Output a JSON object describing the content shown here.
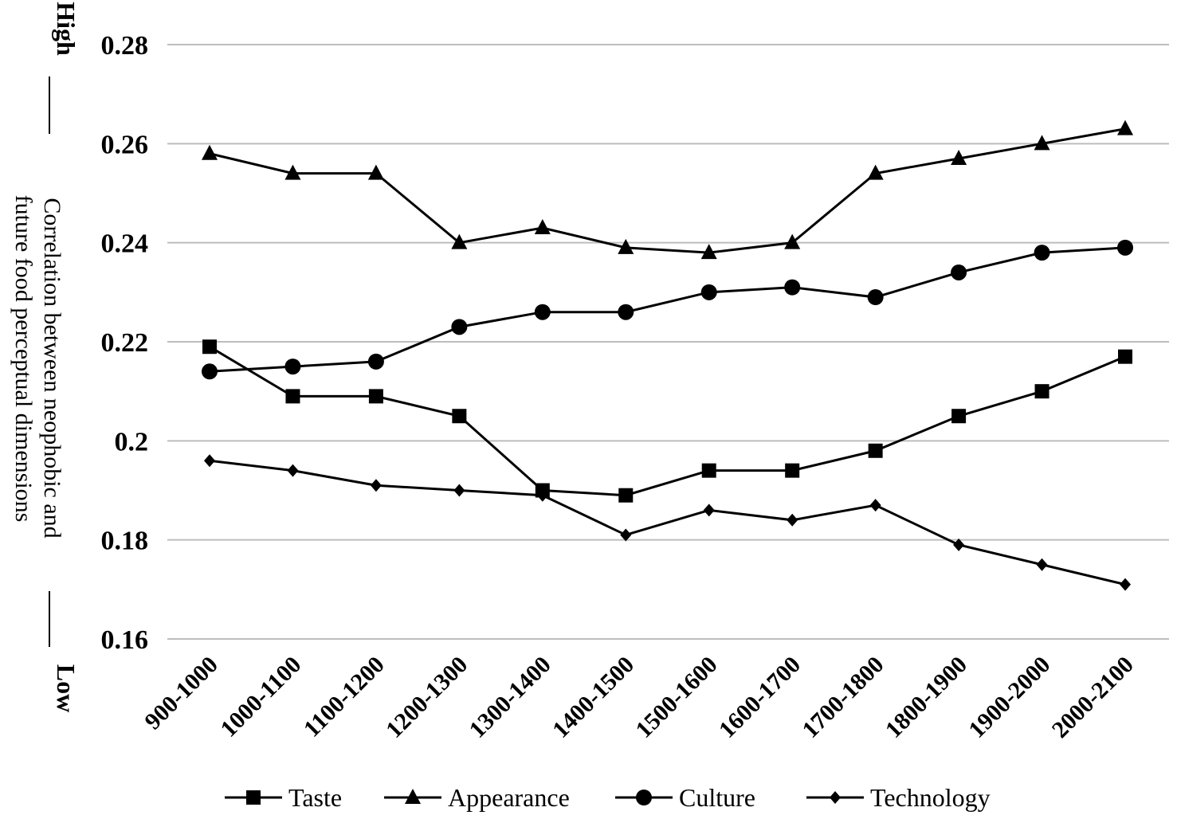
{
  "chart_data": {
    "type": "line",
    "title": "",
    "xlabel": "",
    "ylabel_lines": [
      "Correlation between neophobic and",
      "future food perceptual dimensions"
    ],
    "high_label": "High",
    "low_label": "Low",
    "ylim": [
      0.16,
      0.28
    ],
    "ytick_labels": [
      "0.16",
      "0.18",
      "0.2",
      "0.22",
      "0.24",
      "0.26",
      "0.28"
    ],
    "ytick_values": [
      0.16,
      0.18,
      0.2,
      0.22,
      0.24,
      0.26,
      0.28
    ],
    "grid": true,
    "legend_position": "bottom",
    "categories": [
      "900-1000",
      "1000-1100",
      "1100-1200",
      "1200-1300",
      "1300-1400",
      "1400-1500",
      "1500-1600",
      "1600-1700",
      "1700-1800",
      "1800-1900",
      "1900-2000",
      "2000-2100"
    ],
    "series": [
      {
        "name": "Taste",
        "marker": "square",
        "values": [
          0.219,
          0.209,
          0.209,
          0.205,
          0.19,
          0.189,
          0.194,
          0.194,
          0.198,
          0.205,
          0.21,
          0.217
        ]
      },
      {
        "name": "Appearance",
        "marker": "triangle",
        "values": [
          0.258,
          0.254,
          0.254,
          0.24,
          0.243,
          0.239,
          0.238,
          0.24,
          0.254,
          0.257,
          0.26,
          0.263
        ]
      },
      {
        "name": "Culture",
        "marker": "circle",
        "values": [
          0.214,
          0.215,
          0.216,
          0.223,
          0.226,
          0.226,
          0.23,
          0.231,
          0.229,
          0.234,
          0.238,
          0.239
        ]
      },
      {
        "name": "Technology",
        "marker": "diamond",
        "values": [
          0.196,
          0.194,
          0.191,
          0.19,
          0.189,
          0.181,
          0.186,
          0.184,
          0.187,
          0.179,
          0.175,
          0.171
        ]
      }
    ],
    "colors": {
      "line": "#000000",
      "grid": "#bdbdbd"
    }
  }
}
